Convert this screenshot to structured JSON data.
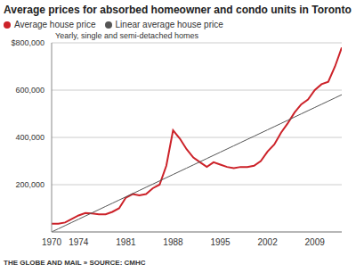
{
  "chart_data": {
    "type": "line",
    "title": "Average prices for absorbed homeowner and condo units in Toronto",
    "subtitle": "Yearly, single and semi-detached homes",
    "footer": "THE GLOBE AND MAIL » SOURCE: CMHC",
    "x": [
      1970,
      1971,
      1972,
      1973,
      1974,
      1975,
      1976,
      1977,
      1978,
      1979,
      1980,
      1981,
      1982,
      1983,
      1984,
      1985,
      1986,
      1987,
      1988,
      1989,
      1990,
      1991,
      1992,
      1993,
      1994,
      1995,
      1996,
      1997,
      1998,
      1999,
      2000,
      2001,
      2002,
      2003,
      2004,
      2005,
      2006,
      2007,
      2008,
      2009,
      2010,
      2011,
      2012,
      2013
    ],
    "series": [
      {
        "name": "Average house price",
        "color": "#cc2229",
        "values": [
          35000,
          35000,
          40000,
          55000,
          70000,
          80000,
          78000,
          75000,
          75000,
          85000,
          100000,
          145000,
          160000,
          155000,
          160000,
          185000,
          200000,
          280000,
          430000,
          395000,
          350000,
          315000,
          295000,
          275000,
          295000,
          285000,
          275000,
          270000,
          275000,
          275000,
          280000,
          300000,
          340000,
          370000,
          420000,
          460000,
          505000,
          540000,
          560000,
          600000,
          625000,
          635000,
          700000,
          780000
        ]
      },
      {
        "name": "Linear average house price",
        "color": "#555555",
        "values": [
          0,
          13500,
          27000,
          40500,
          54000,
          67500,
          81000,
          94500,
          108000,
          121500,
          135000,
          148500,
          162000,
          175500,
          189000,
          202500,
          216000,
          229500,
          243000,
          256500,
          270000,
          283500,
          297000,
          310500,
          324000,
          337500,
          351000,
          364500,
          378000,
          391500,
          405000,
          418500,
          432000,
          445500,
          459000,
          472500,
          486000,
          499500,
          513000,
          526500,
          540000,
          553500,
          567000,
          580500
        ]
      }
    ],
    "xlim": [
      1970,
      2013
    ],
    "xticks": [
      1970,
      1974,
      1981,
      1988,
      1995,
      2002,
      2009
    ],
    "ylim": [
      0,
      800000
    ],
    "yticks": [
      {
        "value": 200000,
        "label": "200,000"
      },
      {
        "value": 400000,
        "label": "400,000"
      },
      {
        "value": 600000,
        "label": "600,000"
      },
      {
        "value": 800000,
        "label": "$800,000"
      }
    ],
    "grid": true
  }
}
